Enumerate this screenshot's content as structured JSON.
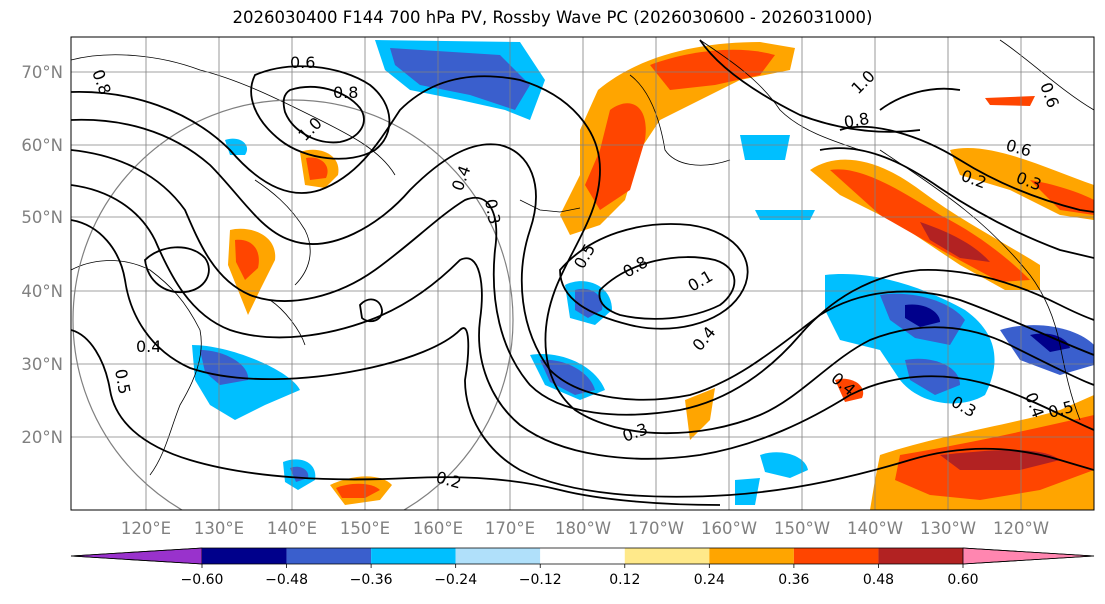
{
  "title": "2026030400 F144 700 hPa PV, Rossby Wave PC (2026030600 - 2026031000)",
  "lat_labels": [
    "70°N",
    "60°N",
    "50°N",
    "40°N",
    "30°N",
    "20°N"
  ],
  "lon_labels": [
    "120°E",
    "130°E",
    "140°E",
    "150°E",
    "160°E",
    "170°E",
    "180°W",
    "170°W",
    "160°W",
    "150°W",
    "140°W",
    "130°W",
    "120°W"
  ],
  "colorbar": {
    "ticks": [
      "−0.60",
      "−0.48",
      "−0.36",
      "−0.24",
      "−0.12",
      "0.12",
      "0.24",
      "0.36",
      "0.48",
      "0.60"
    ],
    "colors": [
      "#9932cc",
      "#00008b",
      "#3a5fcd",
      "#00bfff",
      "#b0e0fa",
      "#ffffff",
      "#ffe98a",
      "#ffa500",
      "#ff4500",
      "#b22222",
      "#ff86b0"
    ]
  },
  "contour_labels": [
    "0.8",
    "0.6",
    "0.8",
    "1.0",
    "0.4",
    "0.3",
    "0.5",
    "0.8",
    "0.1",
    "0.4",
    "0.3",
    "0.2",
    "0.4",
    "0.5",
    "1.0",
    "0.8",
    "0.6",
    "0.2",
    "0.3",
    "0.4",
    "0.3",
    "0.4",
    "0.5",
    "0.6"
  ]
}
